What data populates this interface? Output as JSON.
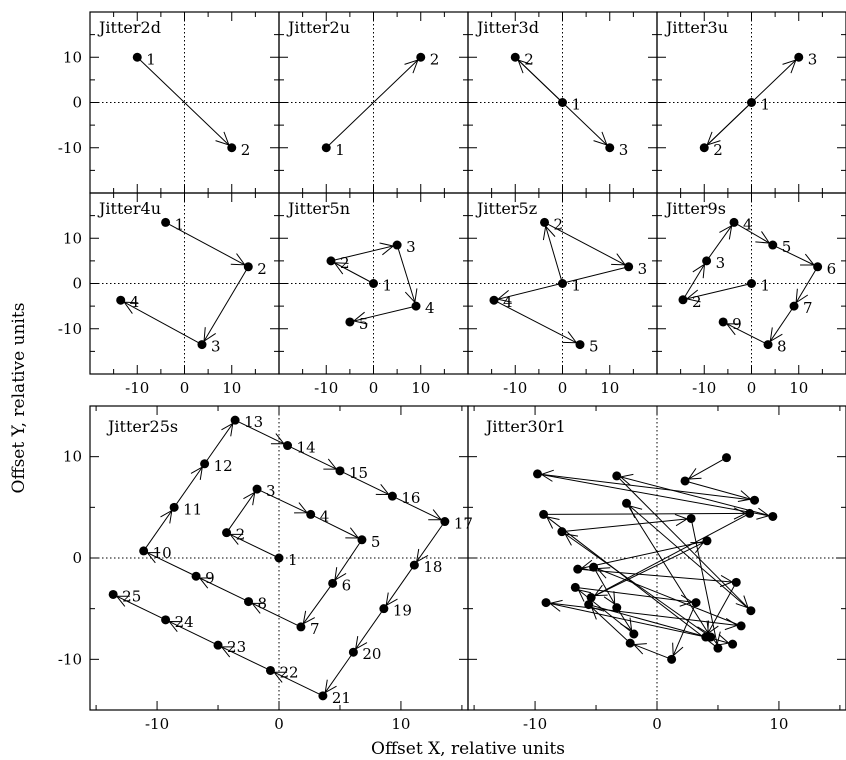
{
  "chart_data": {
    "type": "line",
    "xlabel": "Offset X, relative units",
    "ylabel": "Offset Y, relative units",
    "panels": [
      {
        "title": "Jitter2d",
        "xlim": [
          -20,
          20
        ],
        "ylim": [
          -20,
          20
        ],
        "points": [
          [
            -10,
            10
          ],
          [
            10,
            -10
          ]
        ],
        "labels": [
          "1",
          "2"
        ]
      },
      {
        "title": "Jitter2u",
        "xlim": [
          -20,
          20
        ],
        "ylim": [
          -20,
          20
        ],
        "points": [
          [
            -10,
            -10
          ],
          [
            10,
            10
          ]
        ],
        "labels": [
          "1",
          "2"
        ]
      },
      {
        "title": "Jitter3d",
        "xlim": [
          -20,
          20
        ],
        "ylim": [
          -20,
          20
        ],
        "points": [
          [
            0,
            0
          ],
          [
            -10,
            10
          ],
          [
            10,
            -10
          ]
        ],
        "labels": [
          "1",
          "2",
          "3"
        ]
      },
      {
        "title": "Jitter3u",
        "xlim": [
          -20,
          20
        ],
        "ylim": [
          -20,
          20
        ],
        "points": [
          [
            0,
            0
          ],
          [
            -10,
            -10
          ],
          [
            10,
            10
          ]
        ],
        "labels": [
          "1",
          "2",
          "3"
        ]
      },
      {
        "title": "Jitter4u",
        "xlim": [
          -20,
          20
        ],
        "ylim": [
          -20,
          20
        ],
        "points": [
          [
            -4,
            13.5
          ],
          [
            13.5,
            3.7
          ],
          [
            3.7,
            -13.5
          ],
          [
            -13.5,
            -3.7
          ]
        ],
        "labels": [
          "1",
          "2",
          "3",
          "4"
        ]
      },
      {
        "title": "Jitter5n",
        "xlim": [
          -20,
          20
        ],
        "ylim": [
          -20,
          20
        ],
        "points": [
          [
            0,
            0
          ],
          [
            -9,
            5
          ],
          [
            5,
            8.5
          ],
          [
            9,
            -5
          ],
          [
            -5,
            -8.5
          ]
        ],
        "labels": [
          "1",
          "2",
          "3",
          "4",
          "5"
        ]
      },
      {
        "title": "Jitter5z",
        "xlim": [
          -20,
          20
        ],
        "ylim": [
          -20,
          20
        ],
        "points": [
          [
            0,
            0
          ],
          [
            -3.8,
            13.5
          ],
          [
            14,
            3.7
          ],
          [
            -14.5,
            -3.7
          ],
          [
            3.7,
            -13.5
          ]
        ],
        "labels": [
          "1",
          "2",
          "3",
          "4",
          "5"
        ]
      },
      {
        "title": "Jitter9s",
        "xlim": [
          -20,
          20
        ],
        "ylim": [
          -20,
          20
        ],
        "points": [
          [
            0,
            0
          ],
          [
            -14.5,
            -3.6
          ],
          [
            -9.5,
            5
          ],
          [
            -3.7,
            13.5
          ],
          [
            4.5,
            8.5
          ],
          [
            14,
            3.7
          ],
          [
            9,
            -5
          ],
          [
            3.5,
            -13.5
          ],
          [
            -6,
            -8.5
          ]
        ],
        "labels": [
          "1",
          "2",
          "3",
          "4",
          "5",
          "6",
          "7",
          "8",
          "9"
        ]
      },
      {
        "title": "Jitter25s",
        "xlim": [
          -15.5,
          15.5
        ],
        "ylim": [
          -15,
          15
        ],
        "points": [
          [
            0,
            0
          ],
          [
            -4.3,
            2.5
          ],
          [
            -1.8,
            6.8
          ],
          [
            2.6,
            4.3
          ],
          [
            6.8,
            1.8
          ],
          [
            4.4,
            -2.5
          ],
          [
            1.8,
            -6.8
          ],
          [
            -2.5,
            -4.3
          ],
          [
            -6.8,
            -1.8
          ],
          [
            -11.1,
            0.7
          ],
          [
            -8.6,
            5
          ],
          [
            -6.1,
            9.3
          ],
          [
            -3.6,
            13.6
          ],
          [
            0.7,
            11.1
          ],
          [
            5,
            8.6
          ],
          [
            9.3,
            6.1
          ],
          [
            13.6,
            3.6
          ],
          [
            11.1,
            -0.7
          ],
          [
            8.6,
            -5
          ],
          [
            6.1,
            -9.3
          ],
          [
            3.6,
            -13.6
          ],
          [
            -0.7,
            -11.1
          ],
          [
            -5,
            -8.6
          ],
          [
            -9.3,
            -6.1
          ],
          [
            -13.6,
            -3.6
          ]
        ],
        "labels": [
          "1",
          "2",
          "3",
          "4",
          "5",
          "6",
          "7",
          "8",
          "9",
          "10",
          "11",
          "12",
          "13",
          "14",
          "15",
          "16",
          "17",
          "18",
          "19",
          "20",
          "21",
          "22",
          "23",
          "24",
          "25"
        ]
      },
      {
        "title": "Jitter30r1",
        "xlim": [
          -15.5,
          15.5
        ],
        "ylim": [
          -15,
          15
        ],
        "points": [
          [
            5.7,
            9.9
          ],
          [
            2.3,
            7.6
          ],
          [
            8,
            5.7
          ],
          [
            -9.8,
            8.3
          ],
          [
            9.5,
            4.1
          ],
          [
            -3.3,
            8.1
          ],
          [
            7.7,
            -5.2
          ],
          [
            -2.5,
            5.4
          ],
          [
            4.4,
            -7.8
          ],
          [
            -7.8,
            2.6
          ],
          [
            2.8,
            3.9
          ],
          [
            5,
            -8.9
          ],
          [
            -9.3,
            4.3
          ],
          [
            7.6,
            4.4
          ],
          [
            -5.4,
            -3.9
          ],
          [
            4.1,
            1.7
          ],
          [
            -6.5,
            -1.1
          ],
          [
            6.5,
            -2.4
          ],
          [
            4,
            -7.8
          ],
          [
            -9.1,
            -4.4
          ],
          [
            6.9,
            -6.7
          ],
          [
            -5.2,
            -0.9
          ],
          [
            -3.3,
            -4.9
          ],
          [
            -1.9,
            -7.5
          ],
          [
            -6.7,
            -2.9
          ],
          [
            3.2,
            -4.4
          ],
          [
            1.2,
            -10
          ],
          [
            -2.2,
            -8.4
          ],
          [
            -5.6,
            -4.6
          ],
          [
            6.2,
            -8.5
          ]
        ],
        "labels": []
      }
    ]
  }
}
